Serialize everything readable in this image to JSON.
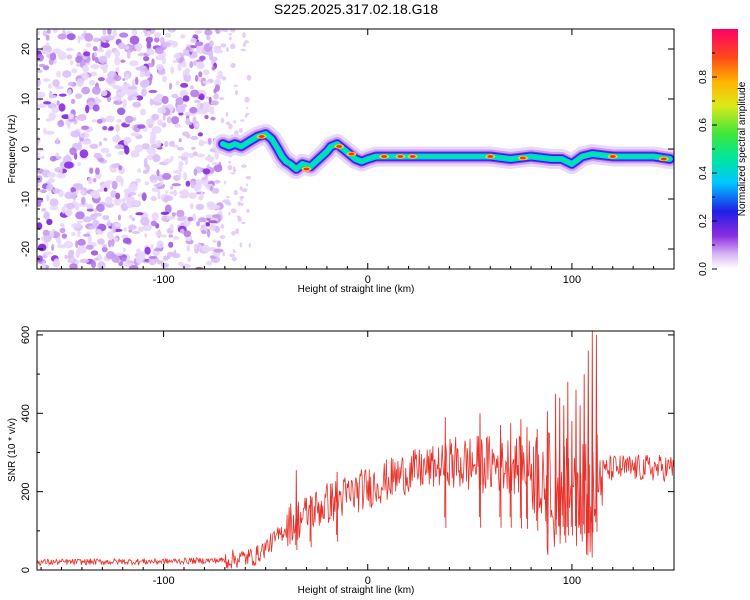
{
  "title": "S225.2025.317.02.18.G18",
  "chart_data": [
    {
      "type": "heatmap",
      "title": "S225.2025.317.02.18.G18",
      "xlabel": "Height of straight line (km)",
      "ylabel": "Frequency (Hz)",
      "xlim": [
        -162,
        150
      ],
      "ylim": [
        -24,
        24
      ],
      "xticks": [
        -100,
        0,
        100
      ],
      "xtick_labels": [
        "-100",
        "0",
        "100"
      ],
      "yticks": [
        -20,
        -10,
        0,
        10,
        20
      ],
      "ytick_labels": [
        "-20",
        "-10",
        "0",
        "10",
        "20"
      ],
      "noise_region_x": [
        -162,
        -72
      ],
      "ridge": {
        "x": [
          -71,
          -68,
          -65,
          -62,
          -58,
          -54,
          -50,
          -47,
          -44,
          -42,
          -40,
          -38,
          -35,
          -32,
          -28,
          -24,
          -20,
          -18,
          -15,
          -12,
          -9,
          -6,
          -3,
          0,
          4,
          8,
          14,
          20,
          30,
          40,
          50,
          60,
          70,
          80,
          90,
          95,
          100,
          105,
          110,
          120,
          130,
          140,
          148
        ],
        "y": [
          1,
          0.5,
          1,
          0.5,
          1.5,
          2.5,
          3,
          2,
          0,
          -1.5,
          -2.5,
          -3,
          -4,
          -3,
          -3.5,
          -2,
          -0.5,
          0.5,
          1,
          0,
          -1,
          -2,
          -2.5,
          -2,
          -1.5,
          -1.5,
          -1.5,
          -1.5,
          -1.5,
          -1.5,
          -1.5,
          -1.5,
          -2,
          -1.5,
          -2,
          -2,
          -3,
          -1.5,
          -1,
          -1.5,
          -1.5,
          -1.5,
          -2
        ]
      },
      "colorbar": {
        "label": "Normalized spectral amplitude",
        "range": [
          0,
          1
        ],
        "ticks": [
          0.0,
          0.2,
          0.4,
          0.6,
          0.8
        ],
        "tick_labels": [
          "0.0",
          "0.2",
          "0.4",
          "0.6",
          "0.8"
        ]
      }
    },
    {
      "type": "line",
      "xlabel": "Height of straight line (km)",
      "ylabel": "SNR (10 * v/v)",
      "xlim": [
        -162,
        150
      ],
      "ylim": [
        0,
        610
      ],
      "xticks": [
        -100,
        0,
        100
      ],
      "xtick_labels": [
        "-100",
        "0",
        "100"
      ],
      "yticks": [
        0,
        200,
        400,
        600
      ],
      "ytick_labels": [
        "0",
        "200",
        "400",
        "600"
      ],
      "color": "#e8312a",
      "envelope": {
        "x": [
          -162,
          -100,
          -70,
          -55,
          -45,
          -38,
          -30,
          -20,
          -10,
          0,
          10,
          20,
          30,
          40,
          50,
          60,
          70,
          80,
          90,
          95,
          100,
          105,
          110,
          115,
          120,
          130,
          140,
          150
        ],
        "y": [
          20,
          22,
          25,
          35,
          80,
          120,
          140,
          170,
          190,
          210,
          230,
          250,
          260,
          270,
          270,
          270,
          270,
          260,
          230,
          220,
          220,
          230,
          240,
          250,
          260,
          260,
          260,
          260
        ]
      },
      "spikes": {
        "x": [
          -35,
          -28,
          -15,
          38,
          55,
          65,
          70,
          75,
          78,
          83,
          88,
          92,
          94,
          96,
          98,
          100,
          102,
          104,
          106,
          108,
          110,
          112
        ],
        "y": [
          255,
          190,
          250,
          390,
          400,
          370,
          375,
          385,
          365,
          360,
          405,
          450,
          440,
          420,
          480,
          380,
          460,
          420,
          500,
          560,
          610,
          600
        ]
      }
    }
  ]
}
